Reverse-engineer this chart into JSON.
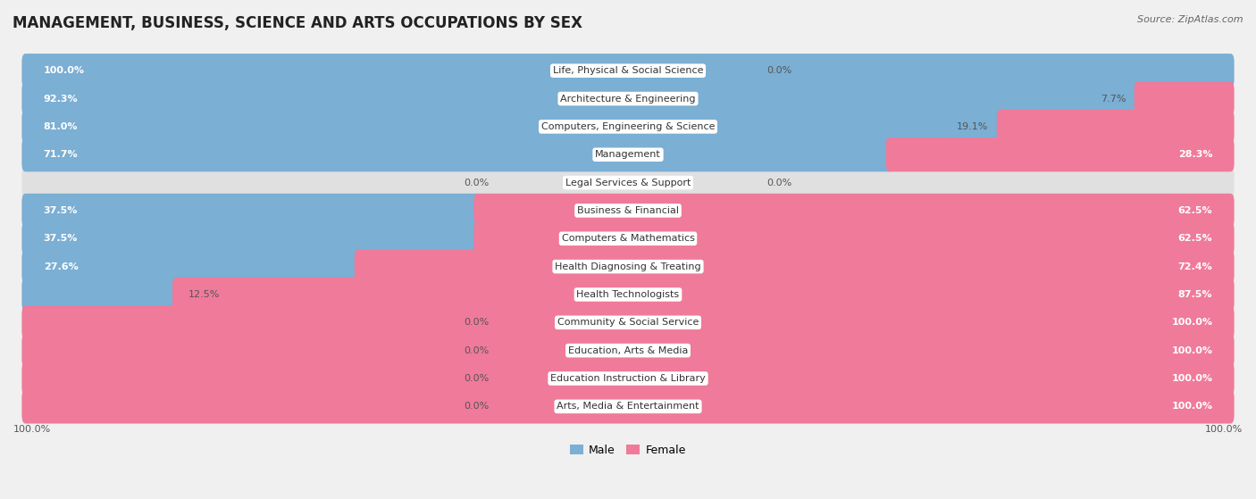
{
  "title": "MANAGEMENT, BUSINESS, SCIENCE AND ARTS OCCUPATIONS BY SEX",
  "source": "Source: ZipAtlas.com",
  "categories": [
    "Life, Physical & Social Science",
    "Architecture & Engineering",
    "Computers, Engineering & Science",
    "Management",
    "Legal Services & Support",
    "Business & Financial",
    "Computers & Mathematics",
    "Health Diagnosing & Treating",
    "Health Technologists",
    "Community & Social Service",
    "Education, Arts & Media",
    "Education Instruction & Library",
    "Arts, Media & Entertainment"
  ],
  "male": [
    100.0,
    92.3,
    81.0,
    71.7,
    0.0,
    37.5,
    37.5,
    27.6,
    12.5,
    0.0,
    0.0,
    0.0,
    0.0
  ],
  "female": [
    0.0,
    7.7,
    19.1,
    28.3,
    0.0,
    62.5,
    62.5,
    72.4,
    87.5,
    100.0,
    100.0,
    100.0,
    100.0
  ],
  "male_color": "#7bafd4",
  "female_color": "#f07a9a",
  "bg_color": "#f0f0f0",
  "row_bg_color": "#e0e0e0",
  "title_fontsize": 12,
  "label_fontsize": 8,
  "pct_fontsize": 8,
  "source_fontsize": 8,
  "legend_fontsize": 9
}
